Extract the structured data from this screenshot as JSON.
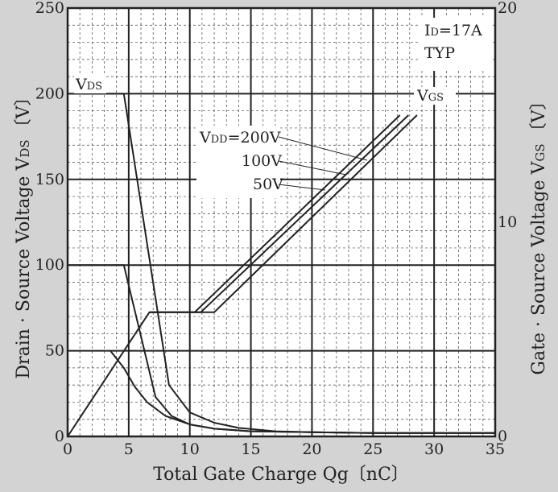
{
  "chart_data": {
    "type": "line",
    "xlabel": "Total Gate Charge  Qg〔nC〕",
    "ylabel_left": "Drain · Source Voltage  V",
    "ylabel_left_sub": "DS",
    "ylabel_left_unit": "〔V〕",
    "ylabel_right": "Gate · Source Voltage  V",
    "ylabel_right_sub": "GS",
    "ylabel_right_unit": "〔V〕",
    "xlim": [
      0,
      35
    ],
    "ylim_left": [
      0,
      250
    ],
    "ylim_right": [
      0,
      20
    ],
    "xticks": [
      "0",
      "5",
      "10",
      "15",
      "20",
      "25",
      "30",
      "35"
    ],
    "yticks_left": [
      "0",
      "50",
      "100",
      "150",
      "200",
      "250"
    ],
    "yticks_right": [
      "0",
      "10",
      "20"
    ],
    "grid": true,
    "conditions": {
      "line1_main": "I",
      "line1_sub": "D",
      "line1_rest": "=17A",
      "line2": "TYP"
    },
    "labels": {
      "vds_main": "V",
      "vds_sub": "DS",
      "vgs_main": "V",
      "vgs_sub": "GS",
      "vdd_main": "V",
      "vdd_sub": "DD",
      "vdd_rest": "=200V",
      "vdd_100": "100V",
      "vdd_50": "50V"
    },
    "series": [
      {
        "name": "V=200V",
        "axis": "left",
        "x": [
          0,
          4.6,
          8.3,
          10,
          12,
          14,
          17,
          20,
          25,
          30,
          35
        ],
        "y": [
          200,
          200,
          30,
          14,
          8,
          5,
          3,
          2.5,
          2,
          2,
          2
        ]
      },
      {
        "name": "V=100V",
        "axis": "left",
        "x": [
          0,
          4.6,
          7.2,
          8.5,
          10,
          12,
          15,
          20,
          25,
          30,
          35
        ],
        "y": [
          100,
          100,
          23,
          12,
          7,
          4.5,
          3,
          2.5,
          2,
          2,
          2
        ]
      },
      {
        "name": "V=50V",
        "axis": "left",
        "x": [
          3.5,
          4.6,
          5.5,
          6.5,
          8,
          10,
          12,
          15,
          20,
          25,
          30,
          35
        ],
        "y": [
          50,
          40,
          29,
          20,
          12,
          7,
          4.5,
          3,
          2.5,
          2,
          2,
          2
        ]
      },
      {
        "name": "V 50V",
        "axis": "right",
        "x": [
          0,
          6.7,
          10.4,
          27.2
        ],
        "y": [
          0,
          5.8,
          5.8,
          15
        ]
      },
      {
        "name": "V 100V",
        "axis": "right",
        "x": [
          6.7,
          10.9,
          27.9
        ],
        "y": [
          5.8,
          5.8,
          15
        ]
      },
      {
        "name": "V 200V",
        "axis": "right",
        "x": [
          6.7,
          12,
          28.6
        ],
        "y": [
          5.8,
          5.8,
          15
        ]
      }
    ]
  }
}
